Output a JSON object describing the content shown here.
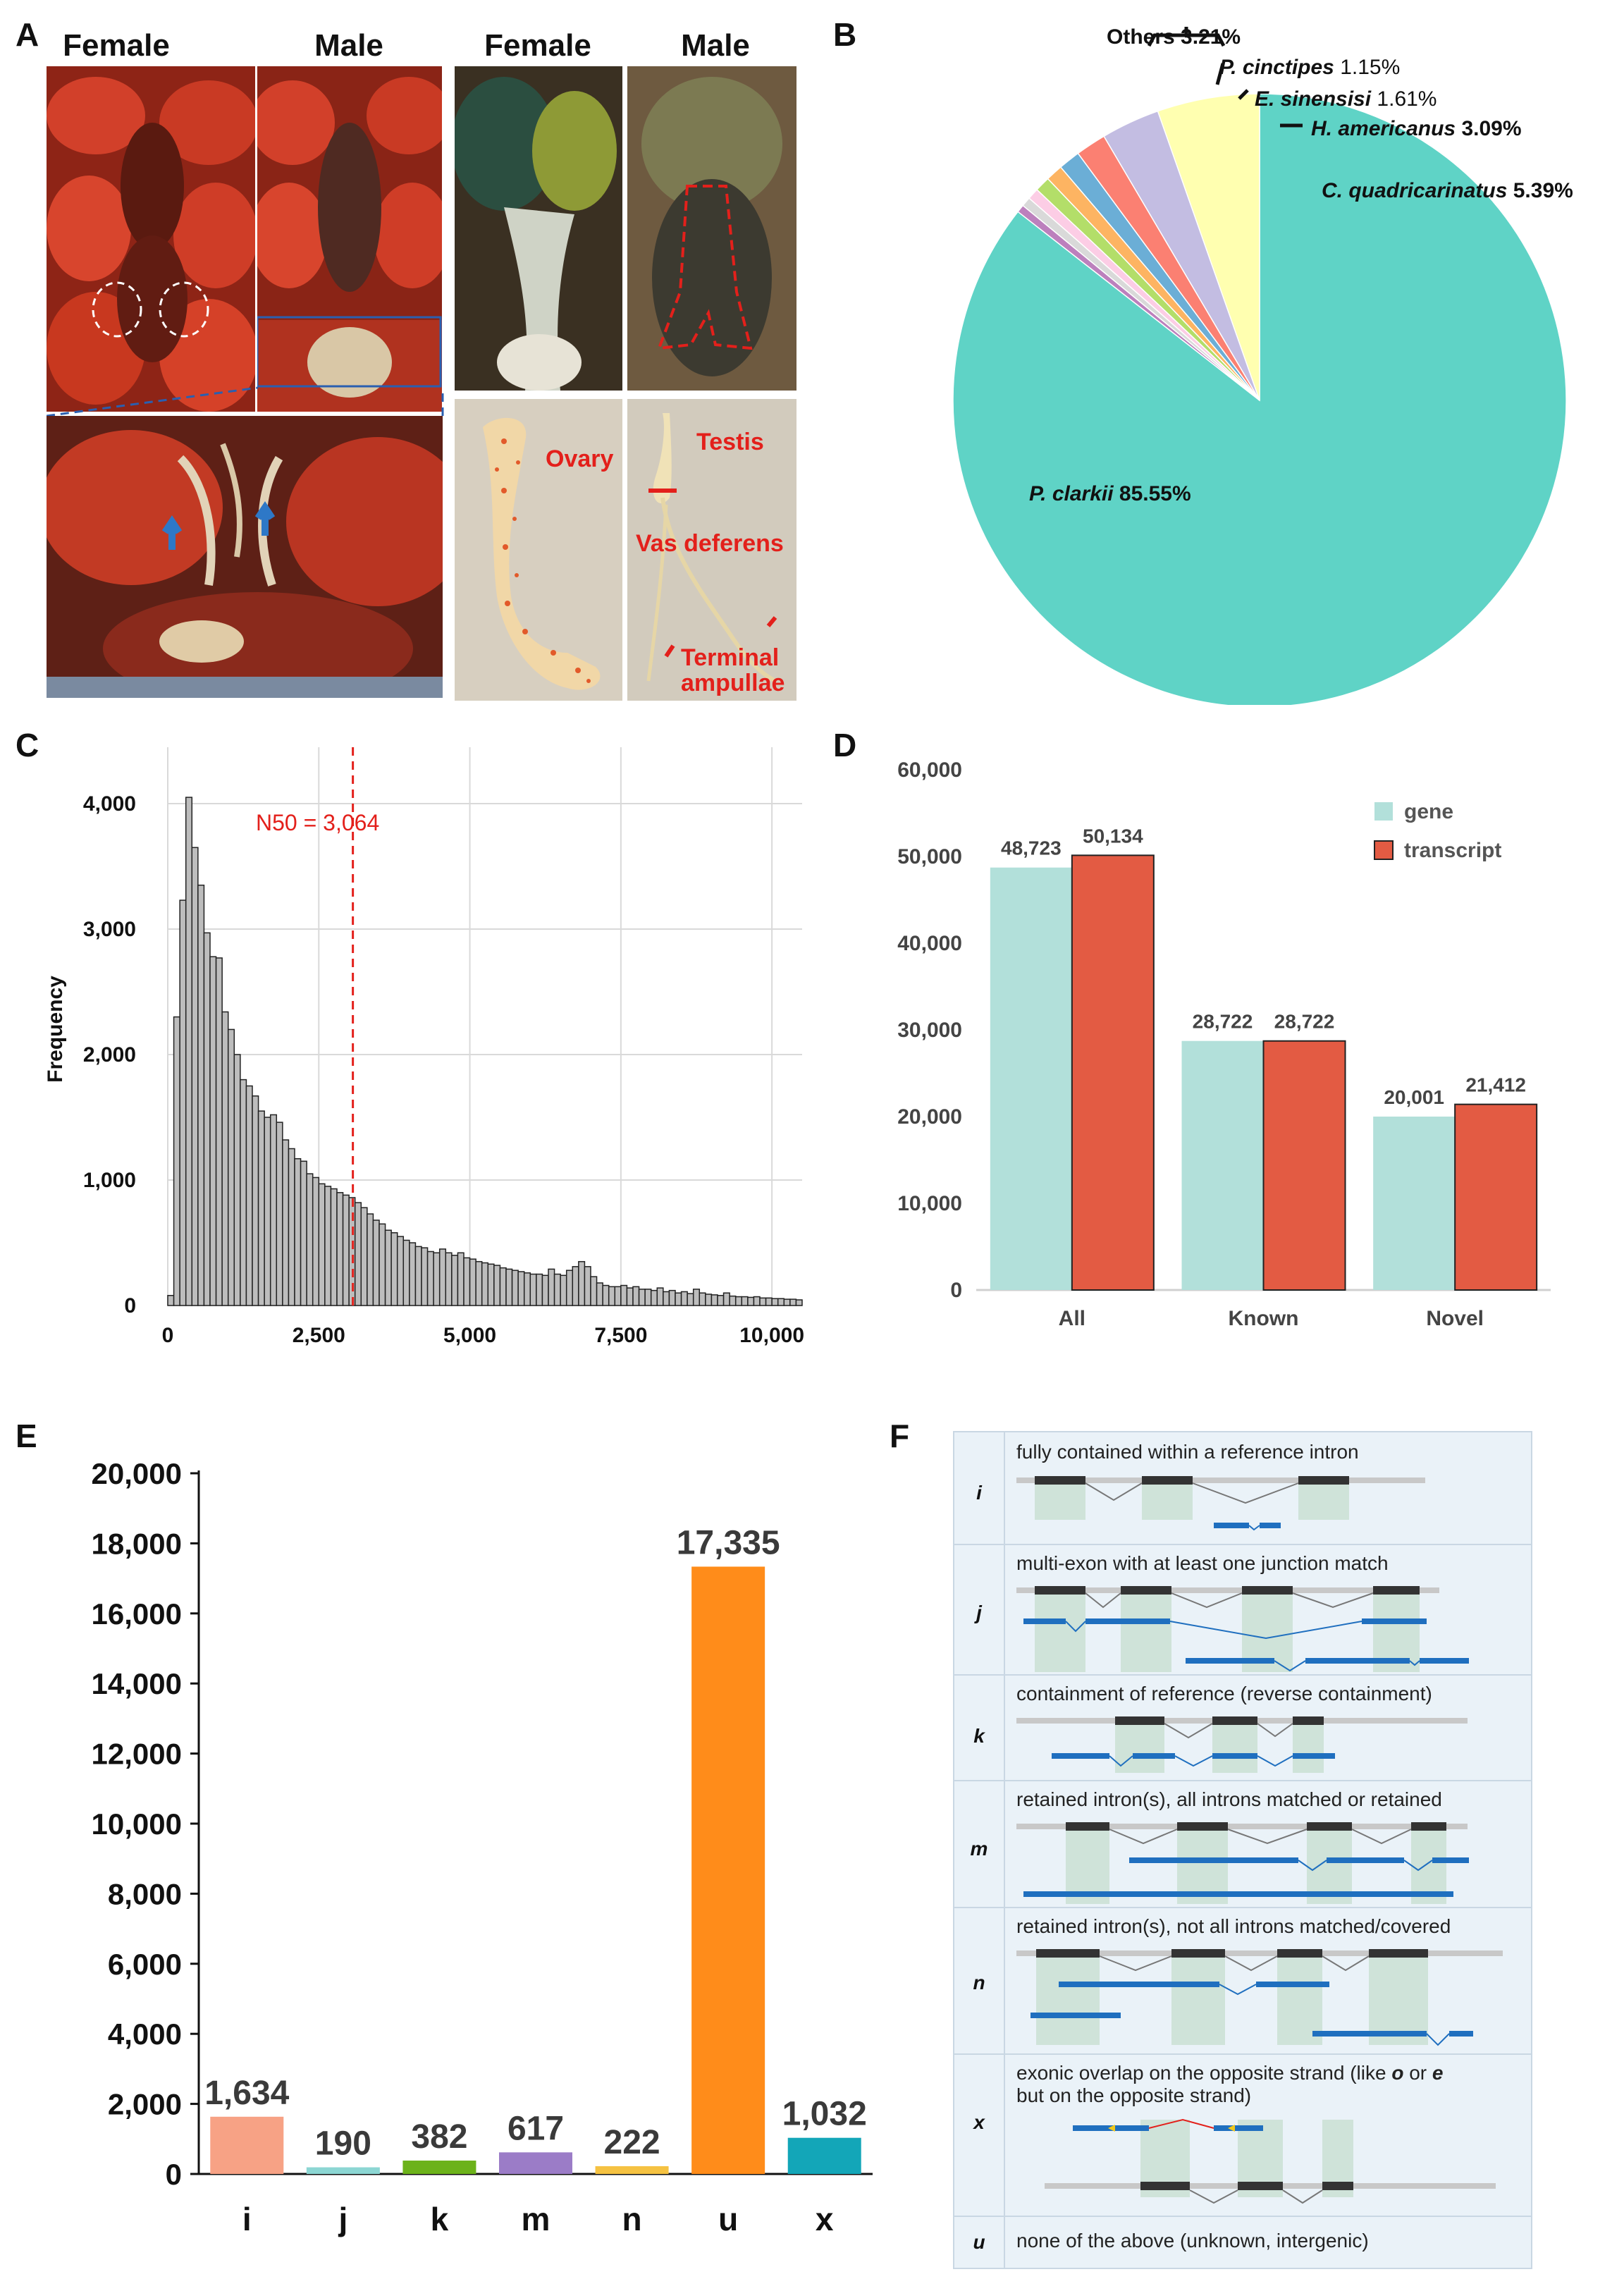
{
  "panelA": {
    "label": "A",
    "headers": [
      "Female",
      "Male",
      "Female",
      "Male"
    ],
    "tissue_labels": [
      "Ovary",
      "Testis",
      "Vas deferens",
      "Terminal",
      "ampullae"
    ],
    "colors": {
      "shell": "#c4311f",
      "shell_dark": "#7a1a10",
      "ovary_bg": "#d7cfc0",
      "label_red": "#e3201b",
      "arrow_blue": "#2e78c7"
    }
  },
  "panelB": {
    "label": "B",
    "labels": [
      {
        "name": "Others",
        "value": "3.21%"
      },
      {
        "name": "P. cinctipes",
        "value": "1.15%"
      },
      {
        "name": "E. sinensisi",
        "value": "1.61%"
      },
      {
        "name": "H. americanus",
        "value": "3.09%"
      },
      {
        "name": "C. quadricarinatus",
        "value": "5.39%"
      },
      {
        "name": "P. clarkii",
        "value": "85.55%"
      }
    ]
  },
  "panelC": {
    "label": "C"
  },
  "panelD": {
    "label": "D"
  },
  "panelE": {
    "label": "E"
  },
  "panelF": {
    "label": "F",
    "rows": [
      {
        "code": "i",
        "desc": "fully contained within a reference intron"
      },
      {
        "code": "j",
        "desc": "multi-exon with at least one junction match"
      },
      {
        "code": "k",
        "desc": "containment of reference (reverse containment)"
      },
      {
        "code": "m",
        "desc": "retained intron(s), all introns matched or retained"
      },
      {
        "code": "n",
        "desc": "retained intron(s), not all introns matched/covered"
      },
      {
        "code": "x",
        "desc1": "exonic overlap on the opposite strand (like ",
        "o": "o",
        "or": " or ",
        "e": "e",
        "desc2": "but on the opposite strand)"
      },
      {
        "code": "u",
        "desc": "none of the above (unknown, intergenic)"
      }
    ],
    "colors": {
      "bg": "#eaf2f8",
      "ref_bar": "#c8c8c8",
      "exon": "#333333",
      "query": "#1f6fbf",
      "shade": "#cfe3d9"
    }
  },
  "chart_data": [
    {
      "type": "pie",
      "panel": "B",
      "slices": [
        {
          "name": "P. clarkii",
          "value": 85.55,
          "color": "#5fd3c6"
        },
        {
          "name": "C. quadricarinatus",
          "value": 5.39,
          "color": "#ffffb0"
        },
        {
          "name": "H. americanus",
          "value": 3.09,
          "color": "#c3bde2"
        },
        {
          "name": "E. sinensisi",
          "value": 1.61,
          "color": "#fb8072"
        },
        {
          "name": "P. cinctipes",
          "value": 1.15,
          "color": "#6baed6"
        },
        {
          "name": "Others",
          "value": 0.9,
          "color": "#fdb462"
        },
        {
          "name": "Others",
          "value": 0.8,
          "color": "#b3de69"
        },
        {
          "name": "Others",
          "value": 0.6,
          "color": "#fccde5"
        },
        {
          "name": "Others",
          "value": 0.5,
          "color": "#d9d9d9"
        },
        {
          "name": "Others",
          "value": 0.41,
          "color": "#bc80bd"
        }
      ]
    },
    {
      "type": "bar",
      "panel": "C",
      "subtype": "histogram",
      "ylabel": "Frequency",
      "xlim": [
        0,
        10500
      ],
      "ylim": [
        0,
        4000
      ],
      "xticks": [
        0,
        2500,
        5000,
        7500,
        10000
      ],
      "xtick_labels": [
        "0",
        "2,500",
        "5,000",
        "7,500",
        "10,000"
      ],
      "yticks": [
        0,
        1000,
        2000,
        3000,
        4000
      ],
      "ytick_labels": [
        "0",
        "1,000",
        "2,000",
        "3,000",
        "4,000"
      ],
      "bin_width": 100,
      "bin_start": 100,
      "values": [
        80,
        2300,
        3230,
        4050,
        3650,
        3350,
        2970,
        2780,
        2770,
        2340,
        2200,
        2000,
        1800,
        1750,
        1670,
        1550,
        1500,
        1520,
        1460,
        1320,
        1250,
        1170,
        1150,
        1050,
        1020,
        970,
        950,
        930,
        900,
        880,
        860,
        820,
        780,
        730,
        680,
        650,
        600,
        580,
        550,
        520,
        500,
        470,
        460,
        430,
        420,
        450,
        420,
        400,
        420,
        380,
        370,
        350,
        340,
        330,
        320,
        300,
        290,
        280,
        270,
        260,
        250,
        250,
        240,
        290,
        250,
        240,
        280,
        310,
        350,
        310,
        230,
        180,
        160,
        150,
        150,
        160,
        140,
        150,
        130,
        130,
        120,
        140,
        110,
        120,
        100,
        110,
        95,
        130,
        100,
        90,
        85,
        80,
        100,
        75,
        70,
        70,
        65,
        70,
        60,
        60,
        55,
        55,
        50,
        50,
        45,
        45,
        40,
        40,
        38,
        36,
        35,
        34,
        32,
        32,
        30,
        30,
        28,
        28,
        26,
        25,
        25,
        24,
        23,
        22,
        22,
        20,
        20,
        20,
        18,
        18,
        17,
        17,
        16,
        16,
        15,
        15,
        14,
        14,
        13,
        13
      ],
      "annotation": {
        "label": "N50 = 3,064",
        "x": 3064
      }
    },
    {
      "type": "bar",
      "panel": "D",
      "categories": [
        "All",
        "Known",
        "Novel"
      ],
      "series": [
        {
          "name": "gene",
          "values": [
            48723,
            28722,
            20001
          ],
          "color": "#b2e0da"
        },
        {
          "name": "transcript",
          "values": [
            50134,
            28722,
            21412
          ],
          "color": "#e35b43"
        }
      ],
      "value_labels": {
        "gene": [
          "48,723",
          "28,722",
          "20,001"
        ],
        "transcript": [
          "50,134",
          "28,722",
          "21,412"
        ]
      },
      "ylim": [
        0,
        60000
      ],
      "yticks": [
        0,
        10000,
        20000,
        30000,
        40000,
        50000,
        60000
      ],
      "ytick_labels": [
        "0",
        "10,000",
        "20,000",
        "30,000",
        "40,000",
        "50,000",
        "60,000"
      ],
      "legend": "top-right"
    },
    {
      "type": "bar",
      "panel": "E",
      "categories": [
        "i",
        "j",
        "k",
        "m",
        "n",
        "u",
        "x"
      ],
      "values": [
        1634,
        190,
        382,
        617,
        222,
        17335,
        1032
      ],
      "value_labels": [
        "1,634",
        "190",
        "382",
        "617",
        "222",
        "17,335",
        "1,032"
      ],
      "colors": [
        "#f7a285",
        "#8cd6d3",
        "#6cb21a",
        "#9b7cc7",
        "#f5c242",
        "#ff8c1a",
        "#13a6b8"
      ],
      "ylim": [
        0,
        20000
      ],
      "yticks": [
        0,
        2000,
        4000,
        6000,
        8000,
        10000,
        12000,
        14000,
        16000,
        18000,
        20000
      ],
      "ytick_labels": [
        "0",
        "2,000",
        "4,000",
        "6,000",
        "8,000",
        "10,000",
        "12,000",
        "14,000",
        "16,000",
        "18,000",
        "20,000"
      ]
    }
  ]
}
